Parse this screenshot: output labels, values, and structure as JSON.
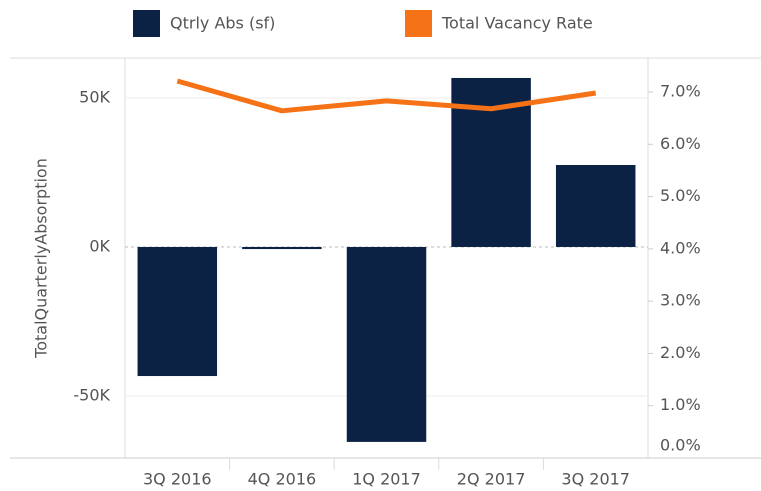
{
  "chart_data": {
    "type": "bar",
    "categories": [
      "3Q 2016",
      "4Q 2016",
      "1Q 2017",
      "2Q 2017",
      "3Q 2017"
    ],
    "y_axis_label": "TotalQuarterlyAbsorption",
    "series": [
      {
        "name": "Qtrly Abs (sf)",
        "type": "bar",
        "color": "#0b2244",
        "values": [
          -43300,
          -700,
          -65400,
          56700,
          27500
        ]
      },
      {
        "name": "Total Vacancy Rate",
        "type": "line",
        "axis": "y2",
        "color": "#f57216",
        "values": [
          7.21,
          6.64,
          6.83,
          6.68,
          6.98
        ]
      }
    ],
    "ylim": [
      -70800,
      63400
    ],
    "yticks": [
      {
        "value": -50000,
        "label": "-50K"
      },
      {
        "value": 0,
        "label": "0K"
      },
      {
        "value": 50000,
        "label": "50K"
      }
    ],
    "y2lim": [
      0,
      7.65
    ],
    "y2ticks": [
      {
        "value": 0,
        "label": "0.0%"
      },
      {
        "value": 1,
        "label": "1.0%"
      },
      {
        "value": 2,
        "label": "2.0%"
      },
      {
        "value": 3,
        "label": "3.0%"
      },
      {
        "value": 4,
        "label": "4.0%"
      },
      {
        "value": 5,
        "label": "5.0%"
      },
      {
        "value": 6,
        "label": "6.0%"
      },
      {
        "value": 7,
        "label": "7.0%"
      }
    ],
    "grid": true
  }
}
